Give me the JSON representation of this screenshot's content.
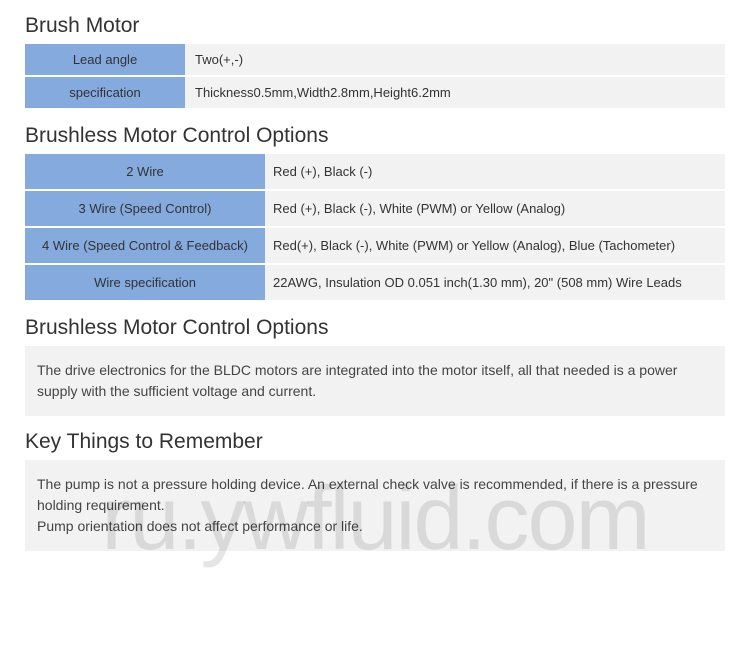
{
  "sections": {
    "brushMotor": {
      "title": "Brush Motor",
      "rows": [
        {
          "label": "Lead angle",
          "value": "Two(+,-)"
        },
        {
          "label": "specification",
          "value": "Thickness0.5mm,Width2.8mm,Height6.2mm"
        }
      ]
    },
    "controlOptions": {
      "title": "Brushless Motor Control Options",
      "rows": [
        {
          "label": "2 Wire",
          "value": "Red (+), Black (-)"
        },
        {
          "label": "3 Wire (Speed Control)",
          "value": "Red (+), Black (-), White (PWM) or Yellow (Analog)"
        },
        {
          "label": "4 Wire (Speed Control & Feedback)",
          "value": "Red(+), Black (-), White (PWM) or Yellow (Analog), Blue (Tachometer)"
        },
        {
          "label": "Wire specification",
          "value": "22AWG, Insulation OD 0.051 inch(1.30 mm), 20\" (508 mm) Wire Leads"
        }
      ]
    },
    "controlOptions2": {
      "title": "Brushless Motor Control Options",
      "text": "The drive electronics for the BLDC motors are integrated into the motor itself, all that needed is a power supply with the sufficient voltage and current."
    },
    "keyThings": {
      "title": "Key Things to Remember",
      "text1": "The pump is not a pressure holding device. An external check valve is recommended, if there is a pressure holding requirement.",
      "text2": "Pump orientation does not affect performance or life."
    }
  },
  "watermark": "ru.ywfluid.com",
  "colors": {
    "header_bg": "#84aade",
    "row_bg": "#f2f2f2",
    "text": "#333333"
  }
}
